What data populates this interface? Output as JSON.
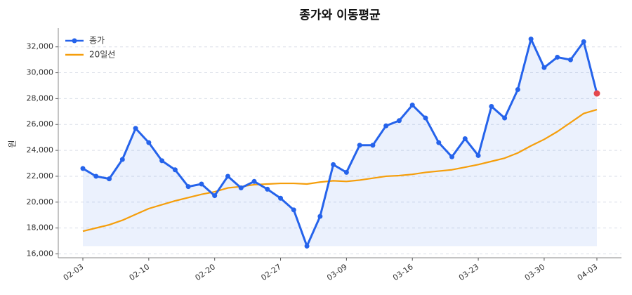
{
  "chart_data": {
    "type": "line",
    "title": "종가와 이동평균",
    "y_label": "원",
    "categories": [
      "02-03",
      null,
      null,
      null,
      null,
      "02-10",
      null,
      null,
      null,
      null,
      "02-20",
      null,
      null,
      null,
      null,
      "02-27",
      null,
      null,
      null,
      null,
      "03-09",
      null,
      null,
      null,
      null,
      "03-16",
      null,
      null,
      null,
      null,
      "03-23",
      null,
      null,
      null,
      null,
      "03-30",
      null,
      null,
      null,
      "04-03"
    ],
    "series": [
      {
        "name": "종가",
        "color": "#2563eb",
        "markers": true,
        "fill": true,
        "values": [
          22600,
          22000,
          21800,
          23300,
          25700,
          24600,
          23200,
          22500,
          21200,
          21400,
          20500,
          22000,
          21100,
          21600,
          21000,
          20300,
          19400,
          16600,
          18900,
          22900,
          22300,
          24400,
          24400,
          25900,
          26300,
          27500,
          26500,
          24600,
          23500,
          24900,
          23600,
          27400,
          26500,
          28700,
          32600,
          30400,
          31200,
          31000,
          32400,
          28400
        ]
      },
      {
        "name": "20일선",
        "color": "#f59e0b",
        "markers": false,
        "fill": false,
        "values": [
          17750,
          18000,
          18250,
          18600,
          19050,
          19500,
          19800,
          20100,
          20350,
          20600,
          20800,
          21100,
          21200,
          21350,
          21400,
          21450,
          21450,
          21400,
          21550,
          21650,
          21600,
          21700,
          21850,
          22000,
          22050,
          22150,
          22300,
          22400,
          22500,
          22700,
          22900,
          23150,
          23400,
          23800,
          24350,
          24850,
          25450,
          26150,
          26850,
          27150
        ]
      }
    ],
    "last_point_color": "#e5484d",
    "ylim": [
      15700,
      33450
    ],
    "yticks": [
      {
        "value": 16000,
        "label": "16,000"
      },
      {
        "value": 18000,
        "label": "18,000"
      },
      {
        "value": 20000,
        "label": "20,000"
      },
      {
        "value": 22000,
        "label": "22,000"
      },
      {
        "value": 24000,
        "label": "24,000"
      },
      {
        "value": 26000,
        "label": "26,000"
      },
      {
        "value": 28000,
        "label": "28,000"
      },
      {
        "value": 30000,
        "label": "30,000"
      },
      {
        "value": 32000,
        "label": "32,000"
      }
    ],
    "grid": true,
    "legend": "upper left"
  }
}
